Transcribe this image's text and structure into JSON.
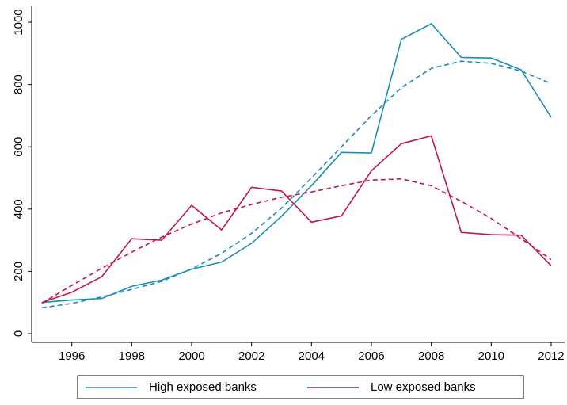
{
  "chart_data": {
    "type": "line",
    "x": [
      1995,
      1996,
      1997,
      1998,
      1999,
      2000,
      2001,
      2002,
      2003,
      2004,
      2005,
      2006,
      2007,
      2008,
      2009,
      2010,
      2011,
      2012
    ],
    "series": [
      {
        "name": "High exposed banks",
        "color": "#1a8db8",
        "style": "solid",
        "values": [
          100,
          108,
          113,
          152,
          172,
          207,
          230,
          290,
          377,
          475,
          582,
          580,
          945,
          995,
          887,
          885,
          847,
          695
        ]
      },
      {
        "name": "Low exposed banks",
        "color": "#c0164a",
        "style": "solid",
        "values": [
          100,
          133,
          183,
          305,
          300,
          412,
          333,
          470,
          458,
          358,
          378,
          523,
          610,
          635,
          325,
          318,
          316,
          218
        ]
      },
      {
        "color": "#1a8db8",
        "style": "dashed",
        "values": [
          83,
          97,
          118,
          142,
          168,
          208,
          258,
          322,
          403,
          500,
          600,
          700,
          790,
          852,
          875,
          868,
          843,
          803
        ]
      },
      {
        "color": "#c0164a",
        "style": "dashed",
        "values": [
          98,
          155,
          210,
          262,
          310,
          352,
          388,
          415,
          438,
          455,
          475,
          493,
          497,
          475,
          425,
          370,
          305,
          238
        ]
      }
    ],
    "xlim": [
      1994.66,
      2012.45
    ],
    "xticks": [
      1996,
      1998,
      2000,
      2002,
      2004,
      2006,
      2008,
      2010,
      2012
    ],
    "ylim": [
      -28,
      1051
    ],
    "yticks": [
      0,
      200,
      400,
      600,
      800,
      1000
    ],
    "grid": false
  }
}
